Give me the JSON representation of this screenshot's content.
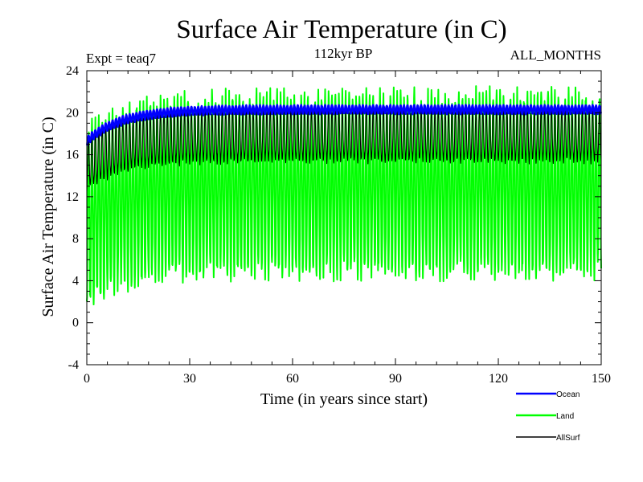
{
  "chart_data": {
    "type": "line",
    "title": "Surface Air Temperature (in C)",
    "subtitle": "112kyr BP",
    "experiment_label": "Expt = teaq7",
    "months_label": "ALL_MONTHS",
    "xlabel": "Time (in years since start)",
    "ylabel": "Surface Air Temperature (in C)",
    "xlim": [
      0,
      150
    ],
    "ylim": [
      -4,
      24
    ],
    "x_ticks": [
      0,
      30,
      60,
      90,
      120,
      150
    ],
    "y_ticks": [
      -4,
      0,
      4,
      8,
      12,
      16,
      20,
      24
    ],
    "grid": false,
    "legend_position": "bottom-right",
    "samples_per_year": 12,
    "series": [
      {
        "name": "Ocean",
        "color": "#0000ff",
        "description": "seasonal cycle around a mean that rises quickly then levels off",
        "start_mean": 17.3,
        "end_mean": 20.3,
        "seasonal_half_amplitude": 0.4,
        "spinup_timescale_years": 10
      },
      {
        "name": "Land",
        "color": "#00ff00",
        "description": "large seasonal cycle; maxima about 21-23 C, minima about 3-7 C",
        "start_mean": 10.0,
        "end_mean": 13.2,
        "seasonal_half_amplitude": 8.3,
        "spinup_timescale_years": 12
      },
      {
        "name": "AllSurf",
        "color": "#000000",
        "description": "weighted all-surface average, seasonal cycle between land and ocean",
        "start_mean": 15.0,
        "end_mean": 17.8,
        "seasonal_half_amplitude": 2.4,
        "spinup_timescale_years": 10
      }
    ]
  }
}
